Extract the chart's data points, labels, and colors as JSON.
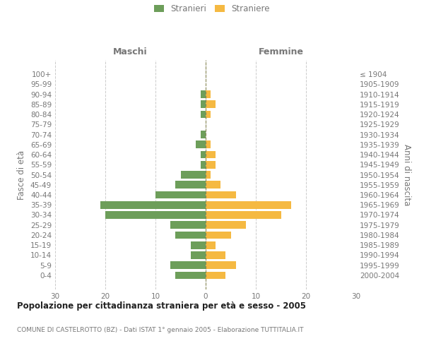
{
  "age_groups": [
    "100+",
    "95-99",
    "90-94",
    "85-89",
    "80-84",
    "75-79",
    "70-74",
    "65-69",
    "60-64",
    "55-59",
    "50-54",
    "45-49",
    "40-44",
    "35-39",
    "30-34",
    "25-29",
    "20-24",
    "15-19",
    "10-14",
    "5-9",
    "0-4"
  ],
  "birth_years": [
    "≤ 1904",
    "1905-1909",
    "1910-1914",
    "1915-1919",
    "1920-1924",
    "1925-1929",
    "1930-1934",
    "1935-1939",
    "1940-1944",
    "1945-1949",
    "1950-1954",
    "1955-1959",
    "1960-1964",
    "1965-1969",
    "1970-1974",
    "1975-1979",
    "1980-1984",
    "1985-1989",
    "1990-1994",
    "1995-1999",
    "2000-2004"
  ],
  "males": [
    0,
    0,
    1,
    1,
    1,
    0,
    1,
    2,
    1,
    1,
    5,
    6,
    10,
    21,
    20,
    7,
    6,
    3,
    3,
    7,
    6
  ],
  "females": [
    0,
    0,
    1,
    2,
    1,
    0,
    0,
    1,
    2,
    2,
    1,
    3,
    6,
    17,
    15,
    8,
    5,
    2,
    4,
    6,
    4
  ],
  "male_color": "#6d9e5a",
  "female_color": "#f5b942",
  "xlim": 30,
  "xlabel_left": "Maschi",
  "xlabel_right": "Femmine",
  "ylabel_left": "Fasce di età",
  "ylabel_right": "Anni di nascita",
  "title": "Popolazione per cittadinanza straniera per età e sesso - 2005",
  "subtitle": "COMUNE DI CASTELROTTO (BZ) - Dati ISTAT 1° gennaio 2005 - Elaborazione TUTTITALIA.IT",
  "legend_male": "Stranieri",
  "legend_female": "Straniere",
  "background_color": "#ffffff",
  "grid_color": "#cccccc",
  "text_color": "#777777",
  "title_color": "#222222"
}
